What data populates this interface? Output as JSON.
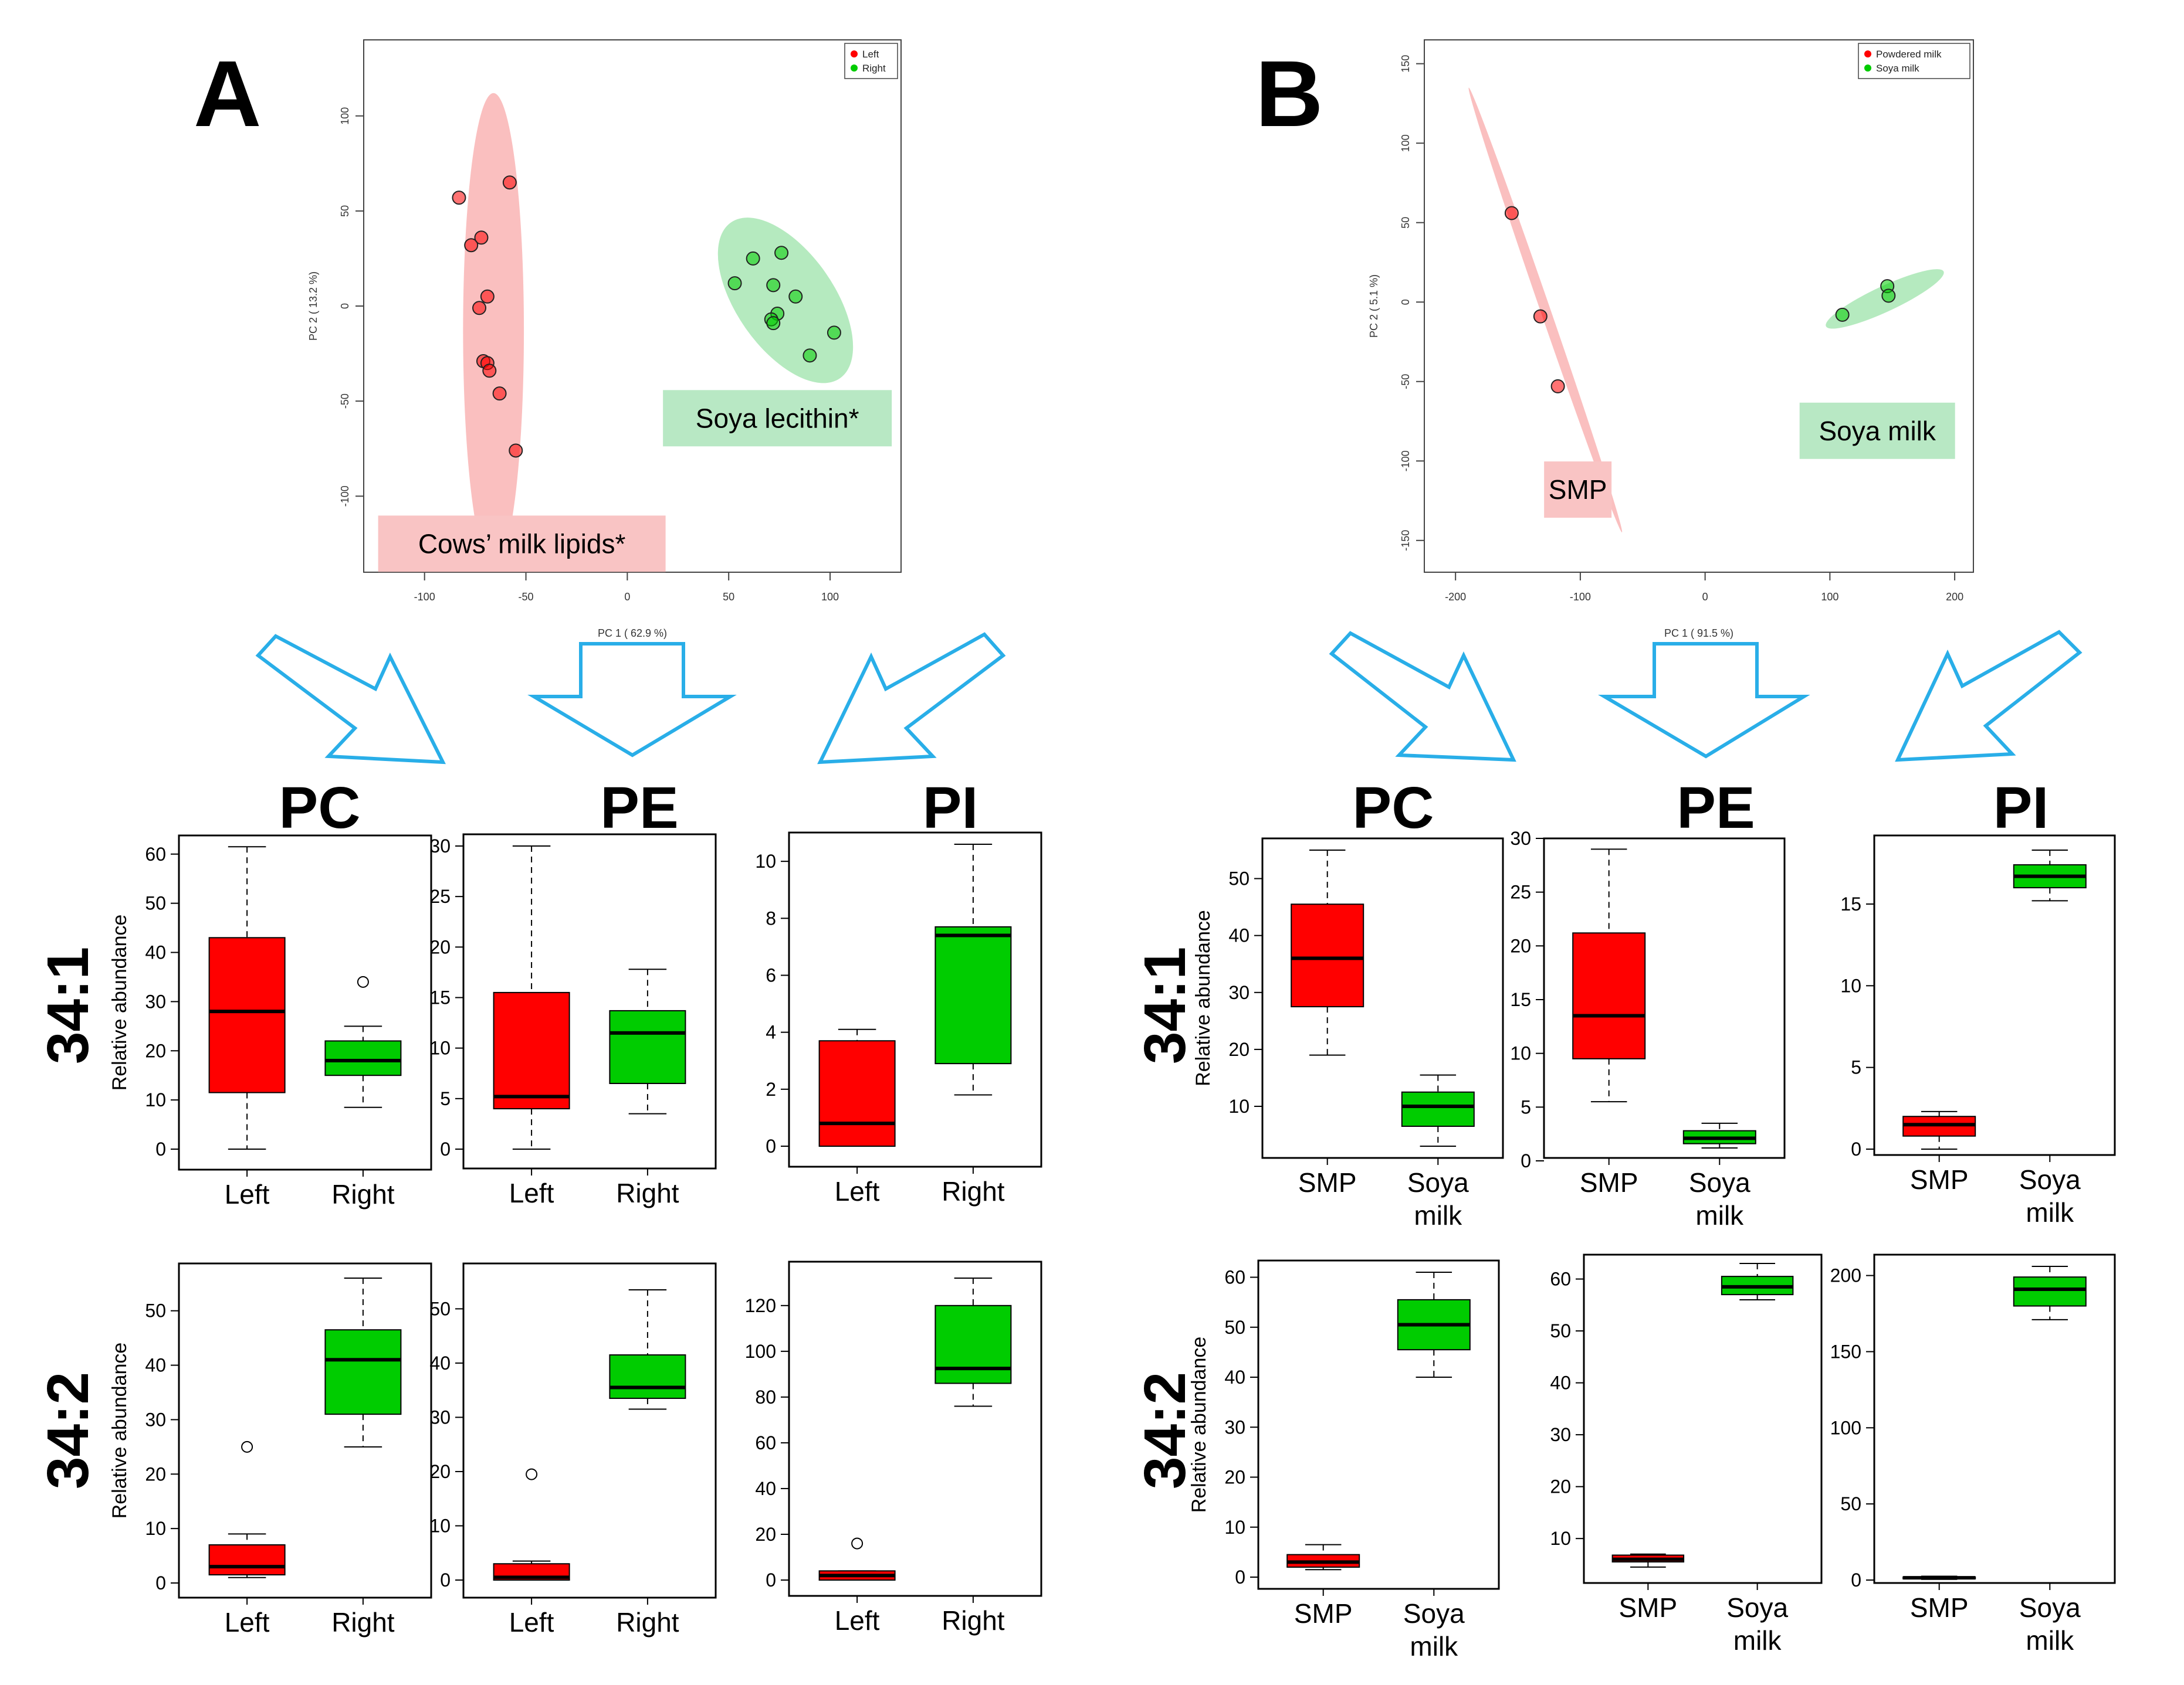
{
  "figure": {
    "panel_a_label": "A",
    "panel_b_label": "B",
    "accent_colors": {
      "red": "#ff0000",
      "green": "#00cc00",
      "arrow": "#29aee8",
      "ellipse_red": "#f9b4b4",
      "ellipse_green": "#a8e6b4"
    }
  },
  "chart_data": [
    {
      "id": "pca-a",
      "type": "scatter",
      "panel": "A",
      "xlabel": "PC 1 ( 62.9 %)",
      "ylabel": "PC 2 ( 13.2 %)",
      "xlim": [
        -130,
        135
      ],
      "ylim": [
        -140,
        140
      ],
      "xticks": [
        -100,
        -50,
        0,
        50,
        100
      ],
      "yticks": [
        -100,
        -50,
        0,
        50,
        100
      ],
      "legend": {
        "placement": "top-right",
        "entries": [
          {
            "label": "Left",
            "color": "#ff0000"
          },
          {
            "label": "Right",
            "color": "#00cc00"
          }
        ]
      },
      "series": [
        {
          "name": "Left",
          "color": "#ff0000",
          "points": [
            [
              -83,
              57
            ],
            [
              -58,
              65
            ],
            [
              -77,
              32
            ],
            [
              -72,
              36
            ],
            [
              -69,
              5
            ],
            [
              -73,
              -1
            ],
            [
              -71,
              -29
            ],
            [
              -69,
              -30
            ],
            [
              -68,
              -34
            ],
            [
              -63,
              -46
            ],
            [
              -55,
              -76
            ]
          ]
        },
        {
          "name": "Right",
          "color": "#00cc00",
          "points": [
            [
              53,
              12
            ],
            [
              62,
              25
            ],
            [
              76,
              28
            ],
            [
              72,
              11
            ],
            [
              83,
              5
            ],
            [
              74,
              -4
            ],
            [
              71,
              -7
            ],
            [
              72,
              -9
            ],
            [
              102,
              -14
            ],
            [
              90,
              -26
            ]
          ]
        }
      ],
      "ellipses": [
        {
          "cx": -66,
          "cy": -13,
          "rx": 15,
          "ry": 125,
          "rotate": 0,
          "color": "#f9b4b4"
        },
        {
          "cx": 78,
          "cy": 3,
          "rx": 24,
          "ry": 50,
          "rotate": -35,
          "color": "#a8e6b4"
        }
      ],
      "annotations": [
        {
          "text": "Cows’ milk lipids*",
          "x": -52,
          "y": -125,
          "color": "#f9c4c4"
        },
        {
          "text": "Soya lecithin*",
          "x": 74,
          "y": -59,
          "color": "#b8e8c4"
        }
      ]
    },
    {
      "id": "pca-b",
      "type": "scatter",
      "panel": "B",
      "xlabel": "PC 1 ( 91.5 %)",
      "ylabel": "PC 2 ( 5.1 %)",
      "xlim": [
        -225,
        215
      ],
      "ylim": [
        -170,
        165
      ],
      "xticks": [
        -200,
        -100,
        0,
        100,
        200
      ],
      "yticks": [
        -150,
        -100,
        -50,
        0,
        50,
        100,
        150
      ],
      "legend": {
        "placement": "top-right",
        "entries": [
          {
            "label": "Powdered milk",
            "color": "#ff0000"
          },
          {
            "label": "Soya milk",
            "color": "#00cc00"
          }
        ]
      },
      "series": [
        {
          "name": "Powdered milk",
          "color": "#ff0000",
          "points": [
            [
              -155,
              56
            ],
            [
              -132,
              -9
            ],
            [
              -118,
              -53
            ]
          ]
        },
        {
          "name": "Soya milk",
          "color": "#00cc00",
          "points": [
            [
              110,
              -8
            ],
            [
              146,
              10
            ],
            [
              147,
              4
            ]
          ]
        }
      ],
      "ellipses": [
        {
          "cx": -128,
          "cy": -5,
          "rx": 4,
          "ry": 148,
          "rotate": -19,
          "color": "#f9b4b4"
        },
        {
          "cx": 144,
          "cy": 2,
          "rx": 52,
          "ry": 8,
          "rotate": -25,
          "color": "#a8e6b4"
        }
      ],
      "annotations": [
        {
          "text": "SMP",
          "x": -102,
          "y": -118,
          "color": "#f9c4c4"
        },
        {
          "text": "Soya milk",
          "x": 138,
          "y": -81,
          "color": "#b8e8c4"
        }
      ]
    }
  ],
  "box_panels": {
    "lipid_titles": [
      "PC",
      "PE",
      "PI"
    ],
    "row_labels": [
      "34:1",
      "34:2"
    ],
    "ylabel": "Relative abundance",
    "categories_a": [
      "Left",
      "Right"
    ],
    "categories_b": [
      "SMP",
      "Soya milk"
    ],
    "plots": [
      {
        "id": "a-pc-341",
        "type": "box",
        "ylim": [
          0,
          62
        ],
        "yticks": [
          0,
          10,
          20,
          30,
          40,
          50,
          60
        ],
        "boxes": [
          {
            "min": 0,
            "q1": 11.5,
            "median": 28,
            "q3": 43,
            "max": 61.5,
            "outliers": []
          },
          {
            "min": 8.5,
            "q1": 15,
            "median": 18,
            "q3": 22,
            "max": 25,
            "outliers": [
              34
            ]
          }
        ]
      },
      {
        "id": "a-pe-341",
        "type": "box",
        "ylim": [
          0,
          30
        ],
        "yticks": [
          0,
          5,
          10,
          15,
          20,
          25,
          30
        ],
        "boxes": [
          {
            "min": 0,
            "q1": 4,
            "median": 5.2,
            "q3": 15.5,
            "max": 30,
            "outliers": []
          },
          {
            "min": 3.5,
            "q1": 6.5,
            "median": 11.5,
            "q3": 13.7,
            "max": 17.8,
            "outliers": []
          }
        ]
      },
      {
        "id": "a-pi-341",
        "type": "box",
        "ylim": [
          0,
          10.6
        ],
        "yticks": [
          0,
          2,
          4,
          6,
          8,
          10
        ],
        "boxes": [
          {
            "min": 0,
            "q1": 0,
            "median": 0.8,
            "q3": 3.7,
            "max": 4.1,
            "outliers": []
          },
          {
            "min": 1.8,
            "q1": 2.9,
            "median": 7.4,
            "q3": 7.7,
            "max": 10.6,
            "outliers": []
          }
        ]
      },
      {
        "id": "b-pc-341",
        "type": "box",
        "ylim": [
          3,
          55
        ],
        "yticks": [
          10,
          20,
          30,
          40,
          50
        ],
        "boxes": [
          {
            "min": 19,
            "q1": 27.5,
            "median": 36,
            "q3": 45.5,
            "max": 55,
            "outliers": []
          },
          {
            "min": 3,
            "q1": 6.5,
            "median": 10,
            "q3": 12.5,
            "max": 15.5,
            "outliers": []
          }
        ]
      },
      {
        "id": "b-pe-341",
        "type": "box",
        "ylim": [
          0,
          30
        ],
        "yticks": [
          0,
          5,
          10,
          15,
          20,
          25,
          30
        ],
        "boxes": [
          {
            "min": 5.5,
            "q1": 9.5,
            "median": 13.5,
            "q3": 21.2,
            "max": 29,
            "outliers": []
          },
          {
            "min": 1.2,
            "q1": 1.6,
            "median": 2.1,
            "q3": 2.8,
            "max": 3.5,
            "outliers": []
          }
        ]
      },
      {
        "id": "b-pi-341",
        "type": "box",
        "ylim": [
          0,
          18.3
        ],
        "yticks": [
          0,
          5,
          10,
          15
        ],
        "boxes": [
          {
            "min": 0,
            "q1": 0.8,
            "median": 1.5,
            "q3": 2,
            "max": 2.3,
            "outliers": []
          },
          {
            "min": 15.2,
            "q1": 16,
            "median": 16.7,
            "q3": 17.4,
            "max": 18.3,
            "outliers": []
          }
        ]
      },
      {
        "id": "a-pc-342",
        "type": "box",
        "ylim": [
          0,
          56
        ],
        "yticks": [
          0,
          10,
          20,
          30,
          40,
          50
        ],
        "boxes": [
          {
            "min": 1,
            "q1": 1.5,
            "median": 3,
            "q3": 7,
            "max": 9,
            "outliers": [
              25
            ]
          },
          {
            "min": 25,
            "q1": 31,
            "median": 41,
            "q3": 46.5,
            "max": 56,
            "outliers": []
          }
        ]
      },
      {
        "id": "a-pe-342",
        "type": "box",
        "ylim": [
          0,
          53.5
        ],
        "yticks": [
          0,
          10,
          20,
          30,
          40,
          50
        ],
        "boxes": [
          {
            "min": 0,
            "q1": 0,
            "median": 0.5,
            "q3": 3,
            "max": 3.5,
            "outliers": [
              19.5
            ]
          },
          {
            "min": 31.5,
            "q1": 33.5,
            "median": 35.5,
            "q3": 41.5,
            "max": 53.5,
            "outliers": []
          }
        ]
      },
      {
        "id": "a-pi-342",
        "type": "box",
        "ylim": [
          0,
          132
        ],
        "yticks": [
          0,
          20,
          40,
          60,
          80,
          100,
          120
        ],
        "boxes": [
          {
            "min": 0,
            "q1": 0,
            "median": 2,
            "q3": 4,
            "max": 4,
            "outliers": [
              16
            ]
          },
          {
            "min": 76,
            "q1": 86,
            "median": 92.5,
            "q3": 120,
            "max": 132,
            "outliers": []
          }
        ]
      },
      {
        "id": "b-pc-342",
        "type": "box",
        "ylim": [
          0,
          61
        ],
        "yticks": [
          0,
          10,
          20,
          30,
          40,
          50,
          60
        ],
        "boxes": [
          {
            "min": 1.5,
            "q1": 2,
            "median": 3,
            "q3": 4.5,
            "max": 6.5,
            "outliers": []
          },
          {
            "min": 40,
            "q1": 45.5,
            "median": 50.5,
            "q3": 55.5,
            "max": 61,
            "outliers": []
          }
        ]
      },
      {
        "id": "b-pe-342",
        "type": "box",
        "ylim": [
          2,
          63
        ],
        "yticks": [
          10,
          20,
          30,
          40,
          50,
          60
        ],
        "boxes": [
          {
            "min": 4.5,
            "q1": 5.5,
            "median": 6,
            "q3": 6.8,
            "max": 7,
            "outliers": []
          },
          {
            "min": 56,
            "q1": 57,
            "median": 58.5,
            "q3": 60.5,
            "max": 63,
            "outliers": []
          }
        ]
      },
      {
        "id": "b-pi-342",
        "type": "box",
        "ylim": [
          0,
          206
        ],
        "yticks": [
          0,
          50,
          100,
          150,
          200
        ],
        "boxes": [
          {
            "min": 0.5,
            "q1": 1,
            "median": 1.5,
            "q3": 2,
            "max": 2.5,
            "outliers": []
          },
          {
            "min": 171,
            "q1": 180,
            "median": 191,
            "q3": 199,
            "max": 206,
            "outliers": []
          }
        ]
      }
    ]
  }
}
